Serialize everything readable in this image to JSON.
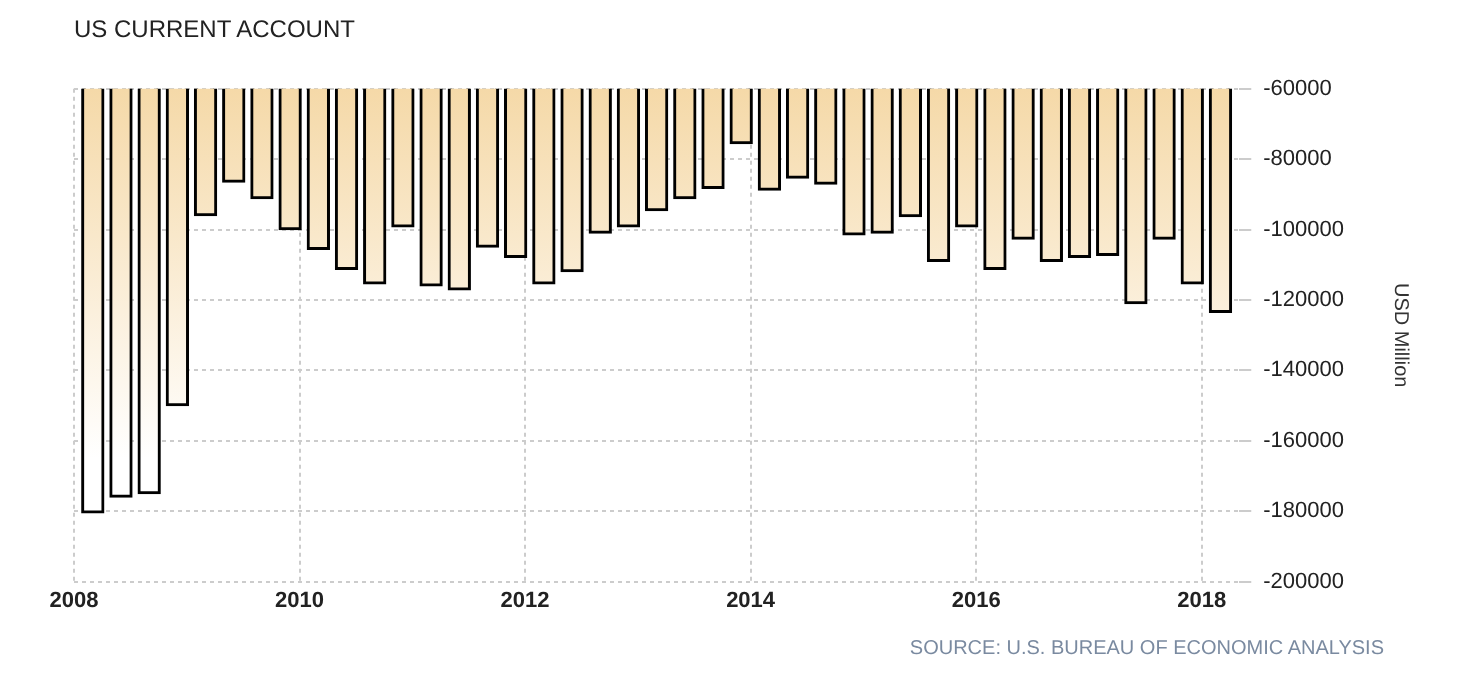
{
  "chart_data": {
    "type": "bar",
    "title": "US CURRENT ACCOUNT",
    "ylabel": "USD Million",
    "annotations": [
      "SOURCE: U.S. BUREAU OF ECONOMIC ANALYSIS"
    ],
    "x": [
      "2008-03",
      "2008-06",
      "2008-09",
      "2008-12",
      "2009-03",
      "2009-06",
      "2009-09",
      "2009-12",
      "2010-03",
      "2010-06",
      "2010-09",
      "2010-12",
      "2011-03",
      "2011-06",
      "2011-09",
      "2011-12",
      "2012-03",
      "2012-06",
      "2012-09",
      "2012-12",
      "2013-03",
      "2013-06",
      "2013-09",
      "2013-12",
      "2014-03",
      "2014-06",
      "2014-09",
      "2014-12",
      "2015-03",
      "2015-06",
      "2015-09",
      "2015-12",
      "2016-03",
      "2016-06",
      "2016-09",
      "2016-12",
      "2017-03",
      "2017-06",
      "2017-09",
      "2017-12",
      "2018-03"
    ],
    "values": [
      -180500,
      -176000,
      -175000,
      -150000,
      -96000,
      -86500,
      -91200,
      -100000,
      -105600,
      -111300,
      -115400,
      -99200,
      -116000,
      -117100,
      -105000,
      -107900,
      -115400,
      -111900,
      -101000,
      -99200,
      -94600,
      -91200,
      -88300,
      -75600,
      -88800,
      -85400,
      -87100,
      -101500,
      -101000,
      -96300,
      -109000,
      -99200,
      -111300,
      -102700,
      -109000,
      -107900,
      -107300,
      -121000,
      -102700,
      -115400,
      -123500
    ],
    "color": "#f5d9a8",
    "xlim": [
      "2008",
      "2018-05"
    ],
    "xticks": [
      "2008",
      "2010",
      "2012",
      "2014",
      "2016",
      "2018"
    ],
    "ylim": [
      -200000,
      -60000
    ],
    "yticks": [
      -200000,
      -180000,
      -160000,
      -140000,
      -120000,
      -100000,
      -80000,
      -60000
    ],
    "grid": true,
    "legend": false
  }
}
